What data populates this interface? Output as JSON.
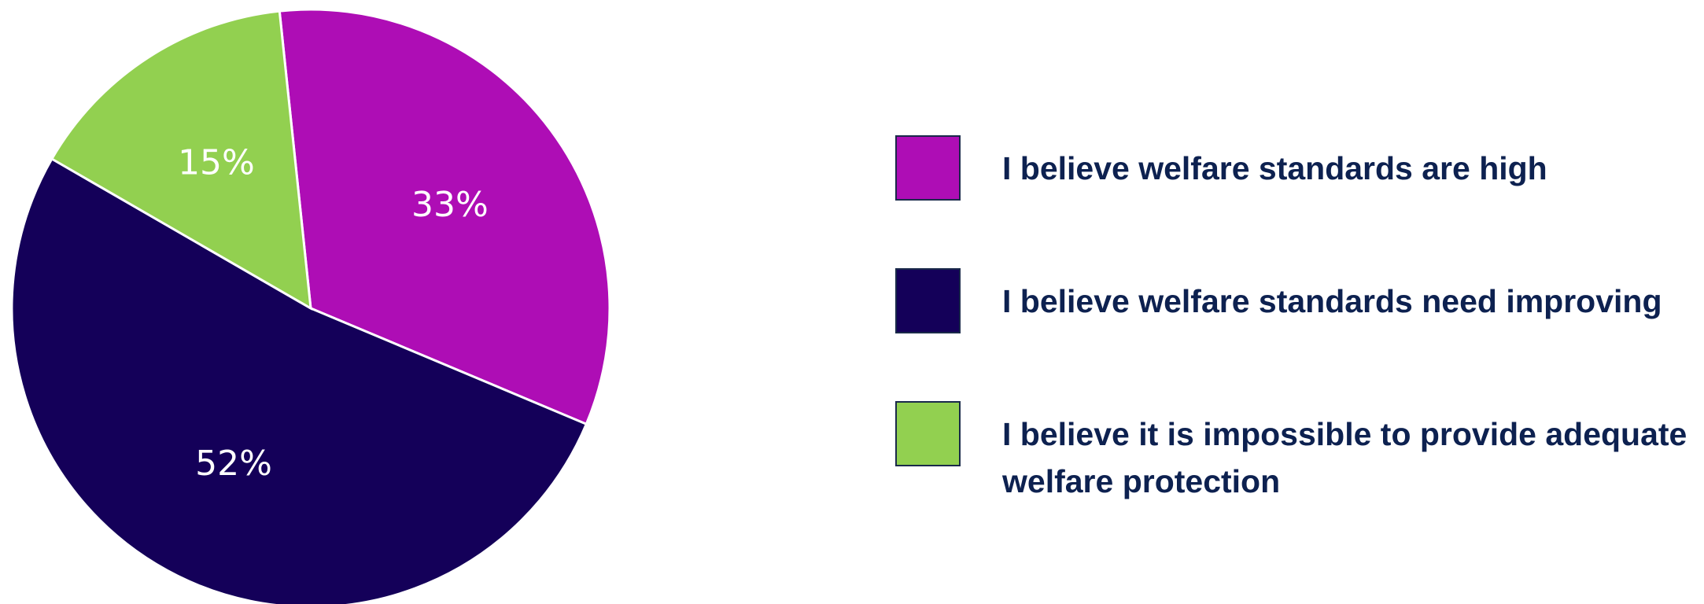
{
  "chart_data": {
    "type": "pie",
    "title": "",
    "slices": [
      {
        "label": "I believe welfare standards are high",
        "value": 33,
        "display": "33%",
        "color": "#ae0db5"
      },
      {
        "label": "I believe welfare standards need improving",
        "value": 52,
        "display": "52%",
        "color": "#140059"
      },
      {
        "label": "I believe it is impossible to provide adequate welfare protection",
        "value": 15,
        "display": "15%",
        "color": "#92d050"
      }
    ],
    "legend_position": "right"
  }
}
